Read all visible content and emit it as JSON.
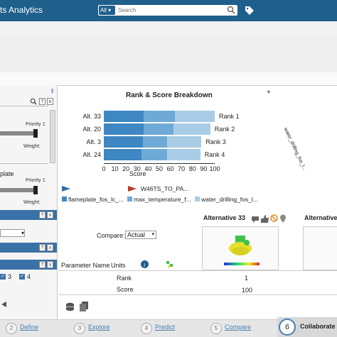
{
  "header": {
    "title": "ts Analytics",
    "search": {
      "scope": "All",
      "placeholder": "Search"
    },
    "search_icon": "search-icon",
    "tag_icon": "tag-icon"
  },
  "left_panel": {
    "priority_1": "Priority 1",
    "weight_1": "Weight:",
    "item_2_label": "plate",
    "priority_2": "Priority 1",
    "weight_2": "Weight:",
    "plate_row_label": "plate",
    "checkbox_3": "3",
    "checkbox_4": "4",
    "help_label": "?",
    "close_label": "x"
  },
  "chart_data": {
    "type": "bar",
    "title": "Rank & Score Breakdown",
    "stacked": true,
    "orientation": "horizontal",
    "categories": [
      "Alt. 33",
      "Alt. 20",
      "Alt. 3",
      "Alt. 24"
    ],
    "ranks": [
      "Rank 1",
      "Rank 2",
      "Rank 3",
      "Rank 4"
    ],
    "xlabel": "Score",
    "xlim": [
      0,
      100
    ],
    "xticks": [
      "0",
      "10",
      "20",
      "30",
      "40",
      "50",
      "60",
      "70",
      "80",
      "90",
      "100"
    ],
    "series": [
      {
        "name": "flameplate_fos_lc_...",
        "color": "#3e87c2",
        "values": [
          36,
          36,
          35,
          34
        ]
      },
      {
        "name": "max_temperature_f...",
        "color": "#6faad6",
        "values": [
          28,
          27,
          22,
          23
        ]
      },
      {
        "name": "water_drilling_fos_l...",
        "color": "#a9cde6",
        "values": [
          36,
          33,
          31,
          30
        ]
      }
    ],
    "legend_extra": "W46TS_TO_PA...",
    "rotated_label": "water_drilling_fos_l..."
  },
  "compare": {
    "label": "Compare:",
    "value": "Actual"
  },
  "alternatives": [
    {
      "title": "Alternative 33"
    },
    {
      "title": "Alternative"
    }
  ],
  "table": {
    "headers": [
      "Parameter Name",
      "Units"
    ],
    "rows": [
      {
        "name": "Rank",
        "value": "1"
      },
      {
        "name": "Score",
        "value": "100"
      }
    ]
  },
  "footer": {
    "steps": [
      {
        "number": "2",
        "label": "Define"
      },
      {
        "number": "3",
        "label": "Explore"
      },
      {
        "number": "4",
        "label": "Predict"
      },
      {
        "number": "5",
        "label": "Compare"
      },
      {
        "number": "6",
        "label": "Collaborate"
      }
    ]
  },
  "colors": {
    "header": "#1f5f8b",
    "panel_head": "#3a72a8",
    "accent": "#3e87c2"
  }
}
